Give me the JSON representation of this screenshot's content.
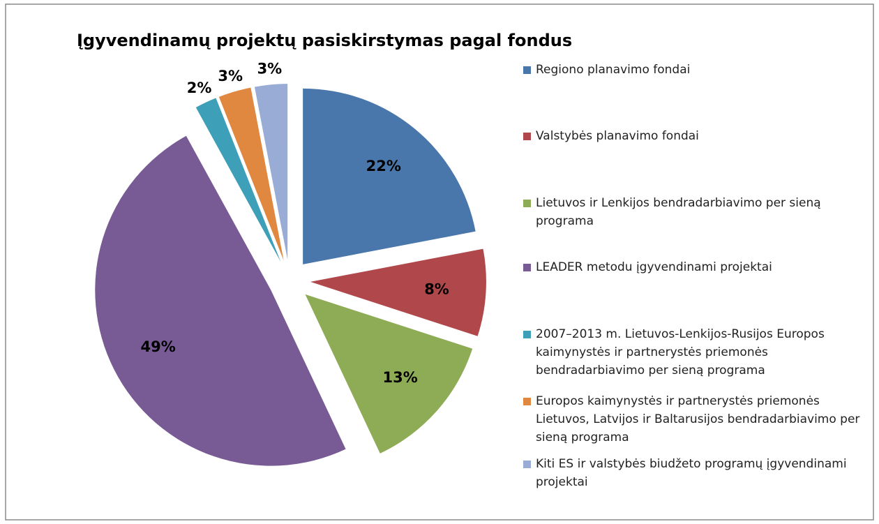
{
  "chart_data": {
    "type": "pie",
    "title": "Įgyvendinamų projektų pasiskirstymas pagal fondus",
    "categories": [
      "Regiono planavimo fondai",
      "Valstybės planavimo fondai",
      "Lietuvos ir Lenkijos bendradarbiavimo per sieną programa",
      "LEADER metodu įgyvendinami projektai",
      "2007–2013 m. Lietuvos-Lenkijos-Rusijos Europos kaimynystės ir partnerystės priemonės bendradarbiavimo per sieną programa",
      "Europos kaimynystės ir partnerystės priemonės Lietuvos, Latvijos  ir Baltarusijos bendradarbiavimo per sieną programa",
      "Kiti ES ir valstybės biudžeto programų įgyvendinami projektai"
    ],
    "values": [
      22,
      8,
      13,
      49,
      2,
      3,
      3
    ],
    "value_labels": [
      "22%",
      "8%",
      "13%",
      "49%",
      "2%",
      "3%",
      "3%"
    ],
    "colors": [
      "#4a77ab",
      "#b0474a",
      "#8eab56",
      "#785b94",
      "#3e9fb8",
      "#e0883f",
      "#98acd6"
    ],
    "legend": "right"
  }
}
